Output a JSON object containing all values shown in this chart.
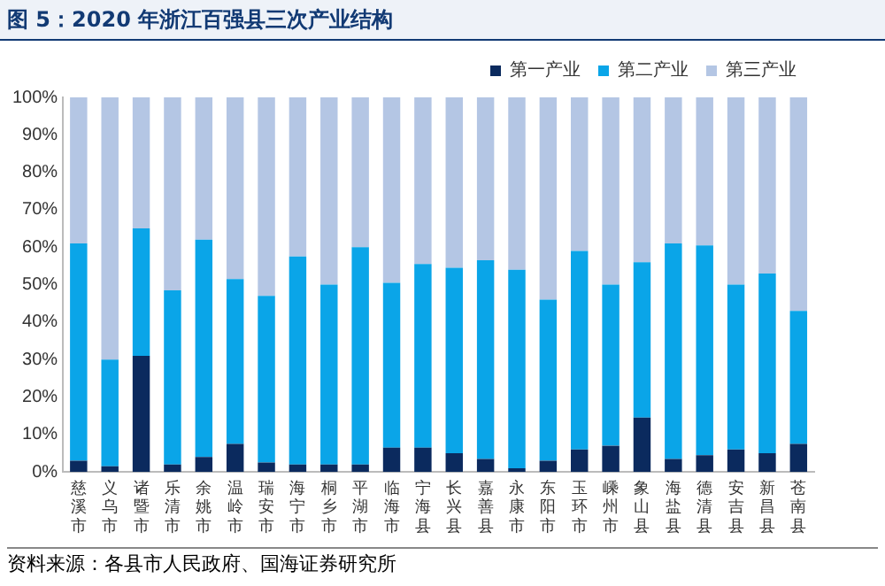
{
  "chart_data": {
    "type": "bar",
    "title": "图 5：2020 年浙江百强县三次产业结构",
    "stacked": true,
    "grid": false,
    "legend": "top right",
    "categories": [
      "慈溪市",
      "义乌市",
      "诸暨市",
      "乐清市",
      "余姚市",
      "温岭市",
      "瑞安市",
      "海宁市",
      "桐乡市",
      "平湖市",
      "临海市",
      "宁海县",
      "长兴县",
      "嘉善县",
      "永康市",
      "东阳市",
      "玉环市",
      "嵊州市",
      "象山县",
      "海盐县",
      "德清县",
      "安吉县",
      "新昌县",
      "苍南县"
    ],
    "series": [
      {
        "name": "第一产业",
        "color": "#0b2a5e",
        "values": [
          3,
          1.5,
          31,
          2,
          4,
          7.5,
          2.5,
          2,
          2,
          2,
          6.5,
          6.5,
          5,
          3.5,
          1,
          3,
          6,
          7,
          14.5,
          3.5,
          4.5,
          6,
          5,
          7.5
        ]
      },
      {
        "name": "第二产业",
        "color": "#0aa5e8",
        "values": [
          58,
          28.5,
          34,
          46.5,
          58,
          44,
          44.5,
          55.5,
          48,
          58,
          44,
          49,
          49.5,
          53,
          53,
          43,
          53,
          43,
          41.5,
          57.5,
          56,
          44,
          48,
          35.5
        ]
      },
      {
        "name": "第三产业",
        "color": "#b4c6e4",
        "values": [
          39,
          70,
          35,
          51.5,
          38,
          48.5,
          53,
          42.5,
          50,
          40,
          49.5,
          44.5,
          45.5,
          43.5,
          46,
          54,
          41,
          50,
          44,
          39,
          39.5,
          50,
          47,
          57
        ]
      }
    ],
    "ylim": [
      0,
      100
    ],
    "yticks": [
      {
        "value": 0,
        "label": "0%"
      },
      {
        "value": 10,
        "label": "10%"
      },
      {
        "value": 20,
        "label": "20%"
      },
      {
        "value": 30,
        "label": "30%"
      },
      {
        "value": 40,
        "label": "40%"
      },
      {
        "value": 50,
        "label": "50%"
      },
      {
        "value": 60,
        "label": "60%"
      },
      {
        "value": 70,
        "label": "70%"
      },
      {
        "value": 80,
        "label": "80%"
      },
      {
        "value": 90,
        "label": "90%"
      },
      {
        "value": 100,
        "label": "100%"
      }
    ],
    "annotations": [
      "资料来源：各县市人民政府、国海证券研究所"
    ]
  }
}
